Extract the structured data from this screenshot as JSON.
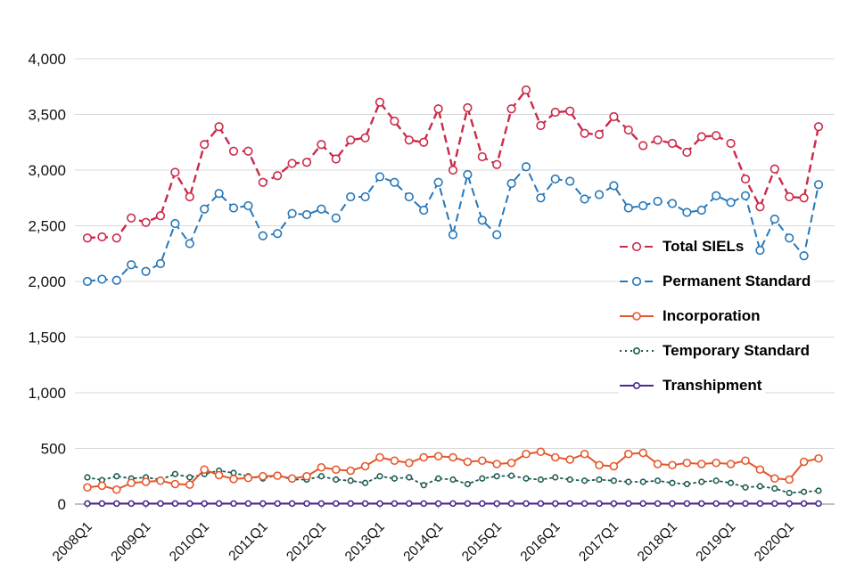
{
  "chart_data": {
    "type": "line",
    "title": "",
    "xlabel": "",
    "ylabel": "",
    "ylim": [
      0,
      4000
    ],
    "y_tick_step": 500,
    "x_tick_every": 4,
    "grid": true,
    "legend_position": "right-center",
    "x": [
      "2008Q1",
      "2008Q2",
      "2008Q3",
      "2008Q4",
      "2009Q1",
      "2009Q2",
      "2009Q3",
      "2009Q4",
      "2010Q1",
      "2010Q2",
      "2010Q3",
      "2010Q4",
      "2011Q1",
      "2011Q2",
      "2011Q3",
      "2011Q4",
      "2012Q1",
      "2012Q2",
      "2012Q3",
      "2012Q4",
      "2013Q1",
      "2013Q2",
      "2013Q3",
      "2013Q4",
      "2014Q1",
      "2014Q2",
      "2014Q3",
      "2014Q4",
      "2015Q1",
      "2015Q2",
      "2015Q3",
      "2015Q4",
      "2016Q1",
      "2016Q2",
      "2016Q3",
      "2016Q4",
      "2017Q1",
      "2017Q2",
      "2017Q3",
      "2017Q4",
      "2018Q1",
      "2018Q2",
      "2018Q3",
      "2018Q4",
      "2019Q1",
      "2019Q2",
      "2019Q3",
      "2019Q4",
      "2020Q1",
      "2020Q2",
      "2020Q3"
    ],
    "x_tick_labels": [
      "2008Q1",
      "2009Q1",
      "2010Q1",
      "2011Q1",
      "2012Q1",
      "2013Q1",
      "2014Q1",
      "2015Q1",
      "2016Q1",
      "2017Q1",
      "2018Q1",
      "2019Q1",
      "2020Q1"
    ],
    "series": [
      {
        "name": "Total SIELs",
        "color": "#cc2a49",
        "dash": "dashed",
        "line_width": 2.4,
        "marker_r": 4.3,
        "values": [
          2390,
          2400,
          2390,
          2570,
          2530,
          2590,
          2980,
          2760,
          3230,
          3390,
          3170,
          3170,
          2890,
          2950,
          3060,
          3070,
          3230,
          3100,
          3270,
          3290,
          3610,
          3440,
          3270,
          3250,
          3550,
          3000,
          3560,
          3120,
          3050,
          3550,
          3720,
          3400,
          3520,
          3530,
          3330,
          3320,
          3480,
          3360,
          3220,
          3270,
          3240,
          3160,
          3300,
          3310,
          3240,
          2920,
          2670,
          3010,
          2760,
          2750,
          3390
        ]
      },
      {
        "name": "Permanent Standard",
        "color": "#2777b8",
        "dash": "dashed",
        "line_width": 2,
        "marker_r": 4.3,
        "values": [
          2000,
          2020,
          2010,
          2150,
          2090,
          2160,
          2520,
          2340,
          2650,
          2790,
          2660,
          2680,
          2410,
          2430,
          2610,
          2600,
          2650,
          2570,
          2760,
          2760,
          2940,
          2890,
          2760,
          2640,
          2890,
          2420,
          2960,
          2550,
          2420,
          2880,
          3030,
          2750,
          2920,
          2900,
          2740,
          2780,
          2860,
          2660,
          2680,
          2720,
          2700,
          2620,
          2640,
          2770,
          2710,
          2770,
          2280,
          2560,
          2390,
          2230,
          2870
        ]
      },
      {
        "name": "Incorporation",
        "color": "#e6562b",
        "dash": "solid",
        "line_width": 2,
        "marker_r": 4,
        "values": [
          150,
          165,
          130,
          190,
          200,
          210,
          180,
          175,
          310,
          260,
          225,
          235,
          250,
          255,
          230,
          250,
          330,
          310,
          300,
          340,
          420,
          390,
          370,
          420,
          430,
          420,
          380,
          390,
          360,
          370,
          450,
          470,
          420,
          400,
          450,
          350,
          340,
          450,
          460,
          360,
          350,
          370,
          360,
          370,
          360,
          390,
          310,
          230,
          220,
          380,
          410
        ]
      },
      {
        "name": "Temporary Standard",
        "color": "#1e5b52",
        "dash": "dotted",
        "line_width": 1.8,
        "marker_r": 2.8,
        "values": [
          240,
          215,
          250,
          230,
          240,
          220,
          270,
          240,
          270,
          300,
          280,
          250,
          230,
          260,
          220,
          220,
          250,
          220,
          210,
          190,
          250,
          230,
          240,
          170,
          230,
          220,
          180,
          230,
          250,
          255,
          230,
          220,
          240,
          220,
          210,
          220,
          210,
          200,
          200,
          210,
          190,
          180,
          200,
          210,
          190,
          150,
          160,
          140,
          100,
          110,
          120
        ]
      },
      {
        "name": "Transhipment",
        "color": "#472a8e",
        "dash": "solid",
        "line_width": 2,
        "marker_r": 3,
        "values": [
          5,
          5,
          5,
          5,
          5,
          5,
          5,
          5,
          5,
          5,
          5,
          5,
          5,
          5,
          5,
          5,
          5,
          5,
          5,
          5,
          5,
          5,
          5,
          5,
          5,
          5,
          5,
          5,
          5,
          5,
          5,
          5,
          5,
          5,
          5,
          5,
          5,
          5,
          5,
          5,
          5,
          5,
          5,
          5,
          5,
          5,
          5,
          5,
          5,
          5,
          5
        ]
      }
    ],
    "colors": {
      "gridline": "#d9d9d9",
      "axis": "#9b9b9b",
      "tick_text": "#111111"
    }
  }
}
